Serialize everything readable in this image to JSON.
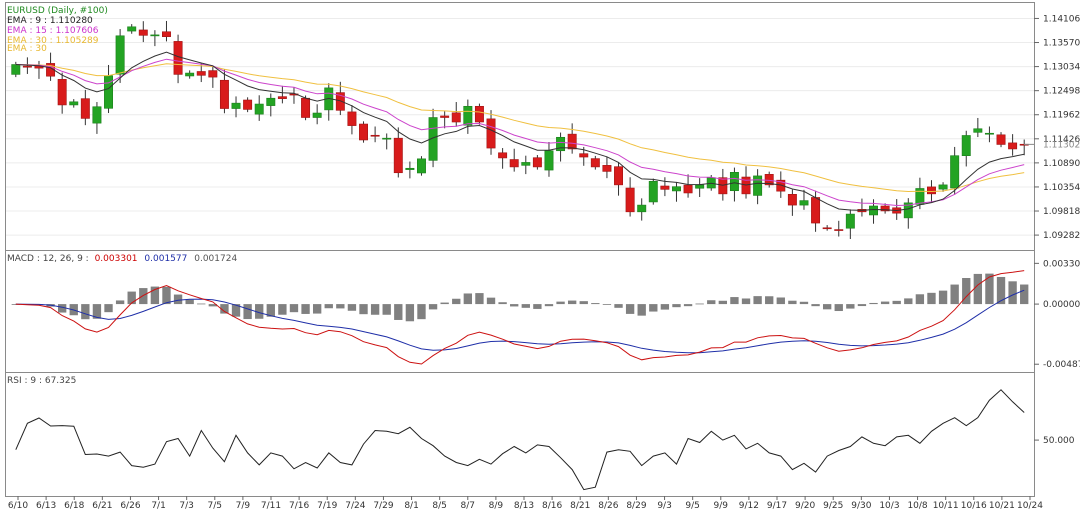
{
  "chart_data": [
    {
      "type": "candlestick",
      "title": "EURUSD (Daily, #100)",
      "legend": [
        {
          "text": "EMA : 9 : 1.110280",
          "color": "#222222"
        },
        {
          "text": "EMA : 15 : 1.107606",
          "color": "#cc33cc"
        },
        {
          "text": "EMA : 30 : 1.105289",
          "color": "#e8b830"
        },
        {
          "text": "EMA : 30",
          "color": "#e8b830"
        }
      ],
      "y_ticks": [
        "1.14106",
        "1.13570",
        "1.13034",
        "1.12498",
        "1.11962",
        "1.11426",
        "1.10890",
        "1.10354",
        "1.09818",
        "1.09282"
      ],
      "last_price_label": "1.11302",
      "ylim": [
        1.0895,
        1.1445
      ],
      "x_labels": [
        "6/10",
        "6/13",
        "6/18",
        "6/21",
        "6/26",
        "7/1",
        "7/3",
        "7/5",
        "7/9",
        "7/11",
        "7/16",
        "7/19",
        "7/24",
        "7/29",
        "8/1",
        "8/5",
        "8/7",
        "8/9",
        "8/13",
        "8/16",
        "8/21",
        "8/26",
        "8/29",
        "9/3",
        "9/5",
        "9/9",
        "9/12",
        "9/17",
        "9/20",
        "9/25",
        "9/30",
        "10/3",
        "10/8",
        "10/11",
        "10/16",
        "10/21",
        "10/24"
      ],
      "close": [
        1.1308,
        1.1302,
        1.13,
        1.1282,
        1.1218,
        1.1225,
        1.1188,
        1.1214,
        1.1283,
        1.1372,
        1.1392,
        1.1373,
        1.1374,
        1.137,
        1.1286,
        1.1289,
        1.1284,
        1.128,
        1.121,
        1.1222,
        1.1208,
        1.122,
        1.1233,
        1.1232,
        1.124,
        1.119,
        1.12,
        1.1256,
        1.1206,
        1.1172,
        1.114,
        1.115,
        1.1144,
        1.1067,
        1.1077,
        1.1098,
        1.119,
        1.119,
        1.118,
        1.1215,
        1.118,
        1.1122,
        1.11,
        1.108,
        1.109,
        1.108,
        1.1116,
        1.1146,
        1.112,
        1.1102,
        1.108,
        1.107,
        1.104,
        1.098,
        1.0995,
        1.1048,
        1.103,
        1.1036,
        1.1022,
        1.104,
        1.1056,
        1.102,
        1.1068,
        1.102,
        1.106,
        1.104,
        1.1026,
        1.0995,
        1.1005,
        1.0955,
        1.0944,
        1.094,
        1.0975,
        1.098,
        1.0993,
        1.0982,
        1.0977,
        1.1,
        1.1032,
        1.102,
        1.104,
        1.1105,
        1.115,
        1.1165,
        1.1155,
        1.113,
        1.112,
        1.113
      ],
      "ema_last": {
        "ema9": 1.11028,
        "ema15": 1.107606,
        "ema30": 1.105289
      }
    },
    {
      "type": "histogram+line",
      "label": "MACD : 12, 26, 9 :",
      "values_text": [
        "0.003301",
        "0.001577",
        "0.001724"
      ],
      "value_colors": [
        "#cc0000",
        "#1f2fa8",
        "#555555"
      ],
      "y_ticks": [
        "0.00330",
        "0.00000",
        "-0.00487"
      ],
      "ylim": [
        -0.0055,
        0.0043
      ]
    },
    {
      "type": "line",
      "label": "RSI : 9 : 67.325",
      "y_ticks": [
        "50.000"
      ],
      "ylim": [
        15,
        92
      ],
      "values": [
        44.0,
        60.5,
        63.8,
        58.8,
        59.1,
        58.7,
        41.0,
        41.3,
        40.0,
        42.5,
        34.0,
        33.0,
        35.0,
        49.0,
        51.0,
        40.0,
        56.0,
        45.0,
        36.5,
        53.0,
        42.0,
        34.5,
        42.0,
        40.0,
        32.0,
        36.0,
        32.5,
        42.0,
        36.0,
        34.5,
        47.5,
        56.0,
        55.5,
        54.0,
        58.0,
        51.0,
        46.5,
        40.0,
        36.0,
        34.0,
        38.0,
        35.0,
        41.5,
        46.0,
        42.0,
        47.0,
        46.0,
        39.0,
        31.5,
        19.0,
        20.5,
        42.5,
        44.0,
        43.0,
        34.0,
        40.0,
        42.0,
        35.0,
        51.0,
        48.5,
        55.5,
        50.0,
        53.0,
        44.5,
        48.0,
        42.0,
        40.0,
        31.5,
        35.5,
        30.0,
        40.0,
        43.5,
        46.0,
        52.0,
        48.0,
        46.5,
        52.0,
        53.0,
        48.0,
        55.5,
        60.5,
        64.0,
        59.0,
        64.0,
        75.0,
        81.5,
        74.0,
        67.3
      ]
    }
  ]
}
